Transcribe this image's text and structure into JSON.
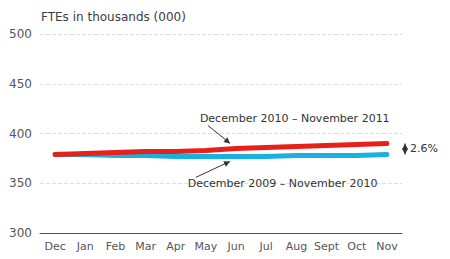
{
  "chart_data": {
    "type": "line",
    "title": "FTEs in thousands (000)",
    "categories": [
      "Dec",
      "Jan",
      "Feb",
      "Mar",
      "Apr",
      "May",
      "Jun",
      "Jul",
      "Aug",
      "Sept",
      "Oct",
      "Nov"
    ],
    "series": [
      {
        "name": "December 2010 – November 2011",
        "color": "#e8201a",
        "values": [
          379,
          380,
          381,
          382,
          382,
          383,
          385,
          386,
          387,
          388,
          389,
          390
        ]
      },
      {
        "name": "December 2009 – November 2010",
        "color": "#1ab0e0",
        "values": [
          379,
          379,
          378,
          378,
          377,
          377,
          377,
          377,
          378,
          378,
          378,
          379
        ]
      }
    ],
    "ylim": [
      300,
      500
    ],
    "yticks": [
      300,
      350,
      400,
      450,
      500
    ],
    "grid": true,
    "annotations": [
      "2.6%"
    ]
  }
}
